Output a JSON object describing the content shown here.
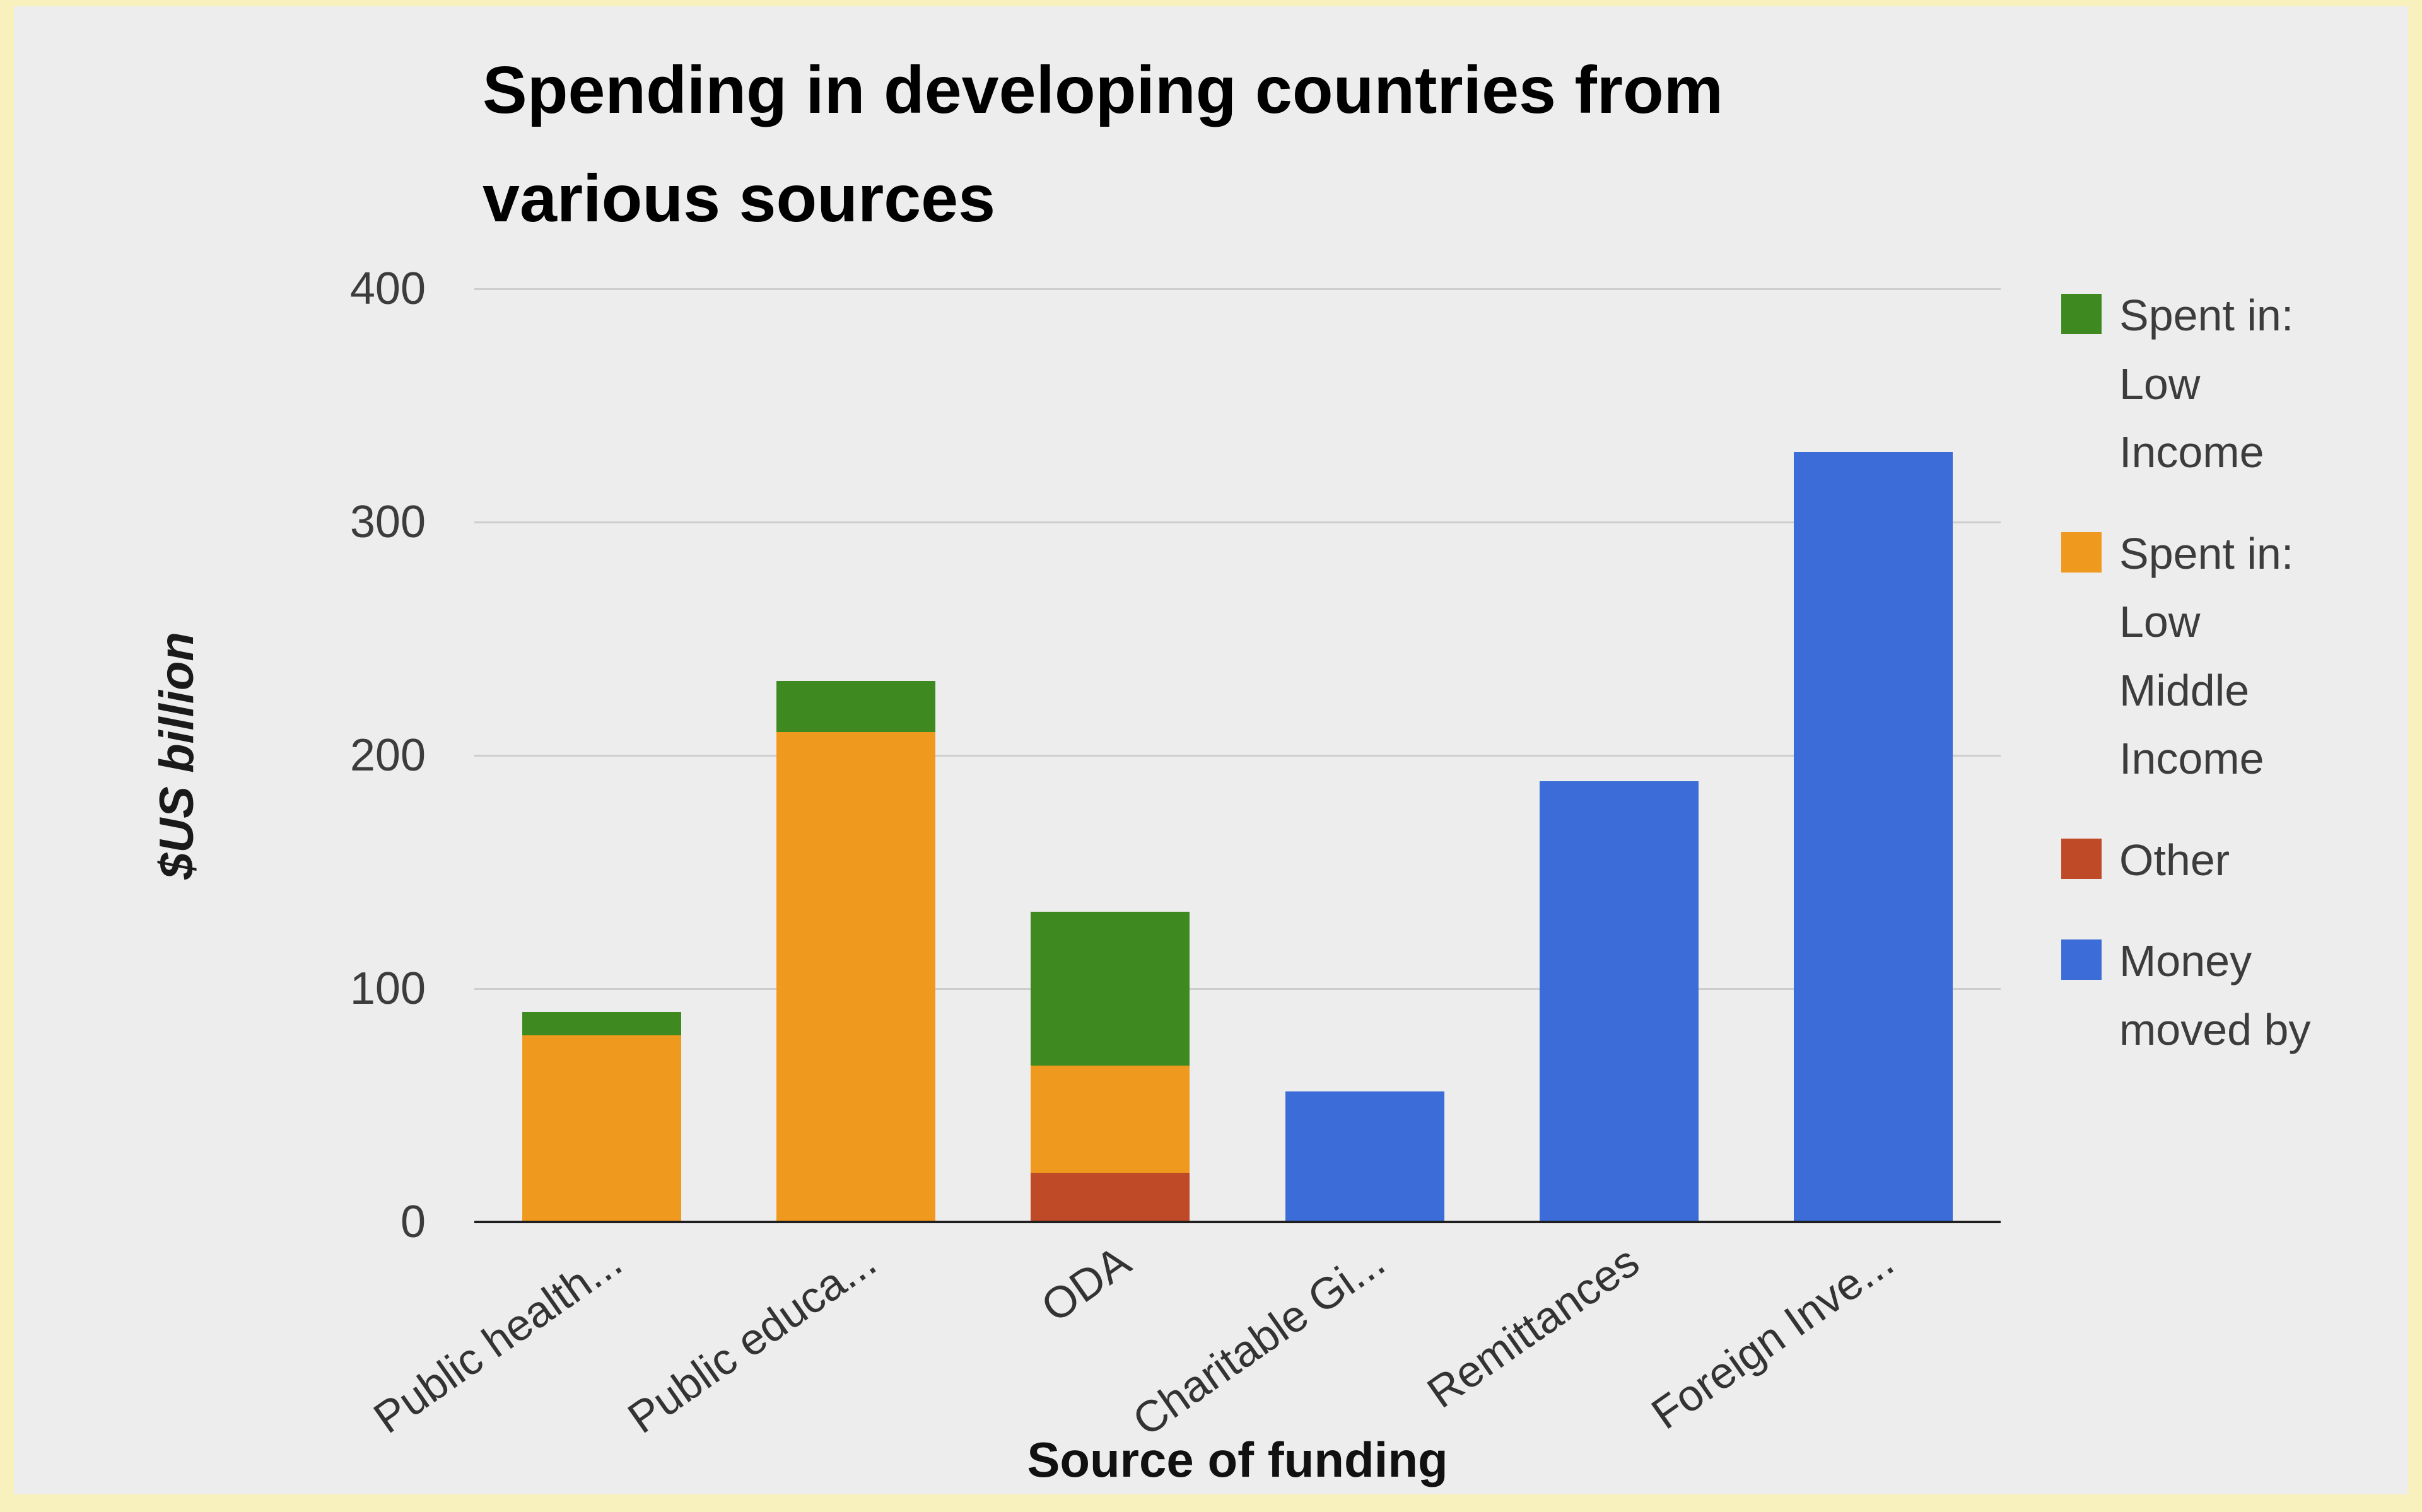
{
  "page": {
    "background_color": "#f8f1bd",
    "surface_color": "#ededed"
  },
  "chart_data": {
    "type": "bar",
    "stacked": true,
    "title": "Spending in developing countries from various sources",
    "title_lines": [
      "Spending in developing countries from",
      "various sources"
    ],
    "xlabel": "Source of funding",
    "ylabel": "$US billion",
    "ylim": [
      0,
      400
    ],
    "yticks": [
      0,
      100,
      200,
      300,
      400
    ],
    "grid": true,
    "legend_position": "right",
    "categories": [
      "Public health...",
      "Public educa...",
      "ODA",
      "Charitable Gi...",
      "Remittances",
      "Foreign Inve..."
    ],
    "series": [
      {
        "name": "Spent in: Low Income",
        "color": "#3e8a20",
        "values": [
          10,
          22,
          66,
          0,
          0,
          0
        ]
      },
      {
        "name": "Spent in: Low Middle Income",
        "color": "#f0991f",
        "values": [
          80,
          210,
          46,
          0,
          0,
          0
        ]
      },
      {
        "name": "Other",
        "color": "#bf4a28",
        "values": [
          0,
          0,
          21,
          0,
          0,
          0
        ]
      },
      {
        "name": "Money moved by",
        "color": "#3c6cd7",
        "values": [
          0,
          0,
          0,
          56,
          189,
          330
        ]
      }
    ],
    "stack_order": [
      "Other",
      "Spent in: Low Middle Income",
      "Spent in: Low Income",
      "Money moved by"
    ]
  }
}
